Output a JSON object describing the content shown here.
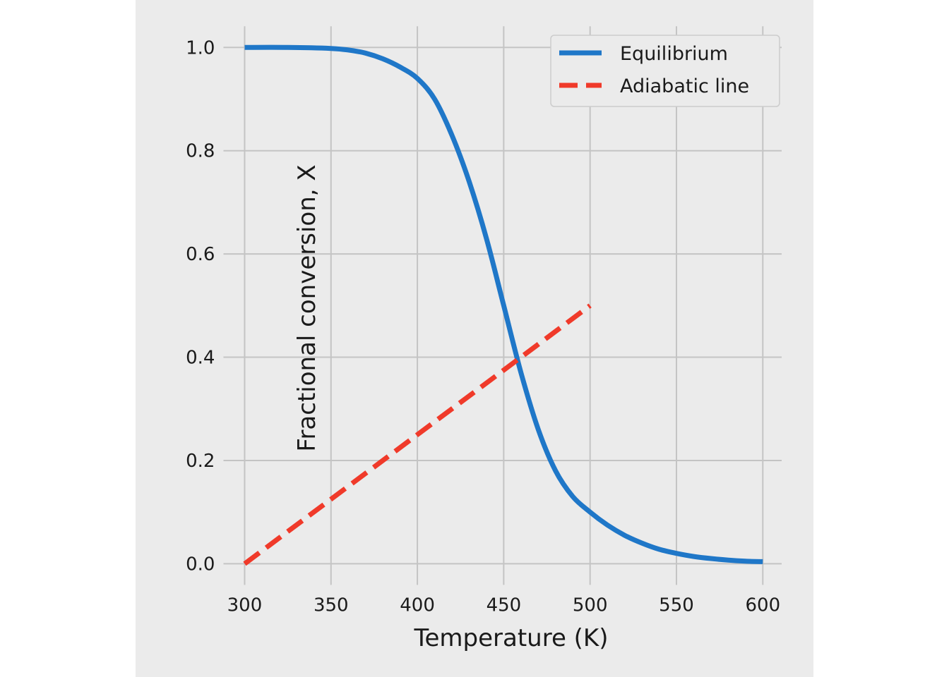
{
  "chart_data": {
    "type": "line",
    "title": "",
    "xlabel": "Temperature (K)",
    "ylabel": "Fractional conversion, X",
    "xlim": [
      290,
      615
    ],
    "ylim": [
      -0.02,
      1.04
    ],
    "xticks": [
      300,
      350,
      400,
      450,
      500,
      550,
      600
    ],
    "yticks": [
      0.0,
      0.2,
      0.4,
      0.6,
      0.8,
      1.0
    ],
    "xtick_labels": [
      "300",
      "350",
      "400",
      "450",
      "500",
      "550",
      "600"
    ],
    "ytick_labels": [
      "0.0",
      "0.2",
      "0.4",
      "0.6",
      "0.8",
      "1.0"
    ],
    "grid": true,
    "legend_position": "top-right",
    "series": [
      {
        "name": "Equilibrium",
        "color": "#1f77c8",
        "style": "solid",
        "x": [
          300,
          325,
          350,
          360,
          370,
          380,
          390,
          400,
          410,
          420,
          430,
          440,
          450,
          460,
          470,
          480,
          490,
          500,
          510,
          520,
          530,
          540,
          550,
          560,
          570,
          580,
          590,
          600
        ],
        "y": [
          1.0,
          1.0,
          0.998,
          0.995,
          0.989,
          0.978,
          0.962,
          0.94,
          0.9,
          0.83,
          0.74,
          0.63,
          0.5,
          0.37,
          0.26,
          0.18,
          0.13,
          0.1,
          0.075,
          0.055,
          0.04,
          0.028,
          0.02,
          0.014,
          0.01,
          0.007,
          0.005,
          0.004
        ]
      },
      {
        "name": "Adiabatic line",
        "color": "#f03a2a",
        "style": "dashed",
        "x": [
          300,
          500
        ],
        "y": [
          0.0,
          0.5
        ]
      }
    ]
  }
}
